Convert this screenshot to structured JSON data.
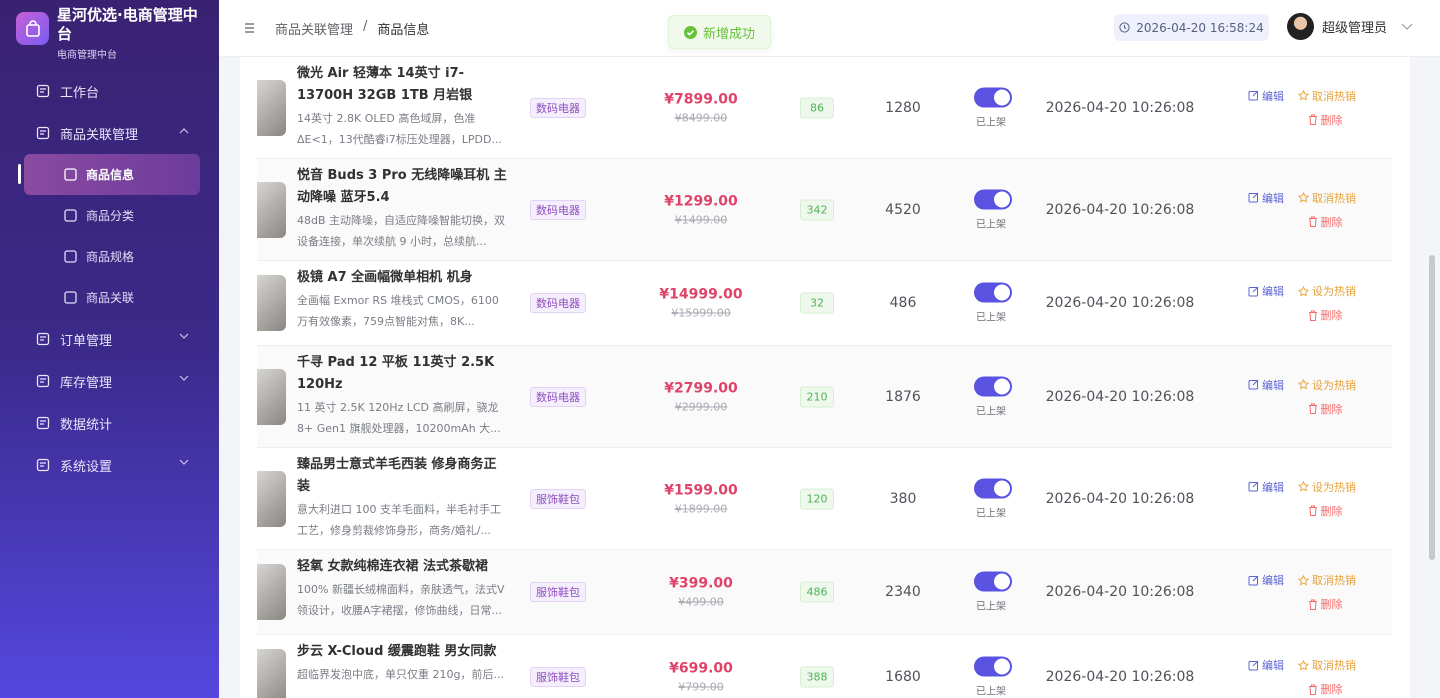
{
  "sidebar": {
    "brand": "星河优选·电商管理中台",
    "subtitle": "电商管理中台",
    "menu": [
      {
        "label": "工作台"
      },
      {
        "label": "商品关联管理",
        "expandable": true,
        "expanded": true,
        "children": [
          "商品信息",
          "商品分类",
          "商品规格",
          "商品关联"
        ],
        "active_child": 0
      },
      {
        "label": "订单管理",
        "expandable": true
      },
      {
        "label": "库存管理",
        "expandable": true
      },
      {
        "label": "数据统计"
      },
      {
        "label": "系统设置",
        "expandable": true
      }
    ]
  },
  "header": {
    "breadcrumb": [
      "商品关联管理",
      "商品信息"
    ],
    "breadcrumb_separator": "/",
    "toast": "新增成功",
    "datetime": "2026-04-20 16:58:24",
    "user": "超级管理员"
  },
  "table": {
    "rows": [
      {
        "name": "微光 Air 轻薄本 14英寸 i7-13700H 32GB 1TB 月岩银",
        "description": "14英寸 2.8K OLED 高色域屏，色准 ΔE<1，13代酷睿i7标压处理器，LPDD...",
        "category": "数码电器",
        "price": "¥7899.00",
        "original_price": "¥8499.00",
        "stock": 86,
        "sales": 1280,
        "status": "已上架",
        "updated_at": "2026-04-20 10:26:08",
        "actions": [
          "编辑",
          "取消热销",
          "删除"
        ]
      },
      {
        "name": "悦音 Buds 3 Pro 无线降噪耳机 主动降噪 蓝牙5.4",
        "description": "48dB 主动降噪，自适应降噪智能切换，双设备连接，单次续航 9 小时，总续航...",
        "category": "数码电器",
        "price": "¥1299.00",
        "original_price": "¥1499.00",
        "stock": 342,
        "sales": 4520,
        "status": "已上架",
        "updated_at": "2026-04-20 10:26:08",
        "actions": [
          "编辑",
          "取消热销",
          "删除"
        ]
      },
      {
        "name": "极镜 A7 全画幅微单相机 机身",
        "description": "全画幅 Exmor RS 堆栈式 CMOS，6100 万有效像素，759点智能对焦，8K...",
        "category": "数码电器",
        "price": "¥14999.00",
        "original_price": "¥15999.00",
        "stock": 32,
        "sales": 486,
        "status": "已上架",
        "updated_at": "2026-04-20 10:26:08",
        "actions": [
          "编辑",
          "设为热销",
          "删除"
        ]
      },
      {
        "name": "千寻 Pad 12 平板 11英寸 2.5K 120Hz",
        "description": "11 英寸 2.5K 120Hz LCD 高刷屏，骁龙 8+ Gen1 旗舰处理器，10200mAh 大...",
        "category": "数码电器",
        "price": "¥2799.00",
        "original_price": "¥2999.00",
        "stock": 210,
        "sales": 1876,
        "status": "已上架",
        "updated_at": "2026-04-20 10:26:08",
        "actions": [
          "编辑",
          "设为热销",
          "删除"
        ]
      },
      {
        "name": "臻品男士意式羊毛西装 修身商务正装",
        "description": "意大利进口 100 支羊毛面料，半毛衬手工工艺，修身剪裁修饰身形，商务/婚礼/...",
        "category": "服饰鞋包",
        "price": "¥1599.00",
        "original_price": "¥1899.00",
        "stock": 120,
        "sales": 380,
        "status": "已上架",
        "updated_at": "2026-04-20 10:26:08",
        "actions": [
          "编辑",
          "设为热销",
          "删除"
        ]
      },
      {
        "name": "轻氧 女款纯棉连衣裙 法式茶歇裙",
        "description": "100% 新疆长绒棉面料，亲肤透气，法式V领设计，收腰A字裙摆，修饰曲线，日常...",
        "category": "服饰鞋包",
        "price": "¥399.00",
        "original_price": "¥499.00",
        "stock": 486,
        "sales": 2340,
        "status": "已上架",
        "updated_at": "2026-04-20 10:26:08",
        "actions": [
          "编辑",
          "取消热销",
          "删除"
        ]
      },
      {
        "name": "步云 X-Cloud 缓震跑鞋 男女同款",
        "description": "超临界发泡中底，单只仅重 210g，前后...",
        "category": "服饰鞋包",
        "price": "¥699.00",
        "original_price": "¥799.00",
        "stock": 388,
        "sales": 1680,
        "status": "已上架",
        "updated_at": "2026-04-20 10:26:08",
        "actions": [
          "编辑",
          "取消热销",
          "删除"
        ]
      }
    ]
  }
}
